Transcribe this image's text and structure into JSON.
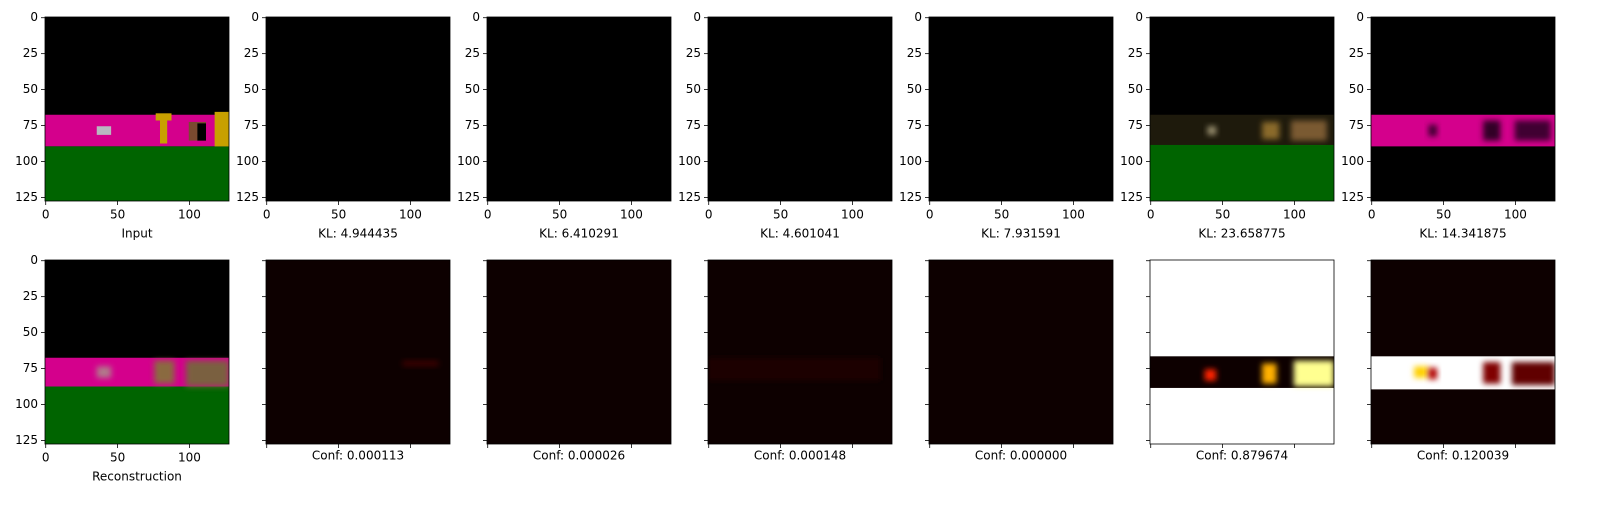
{
  "xlim": [
    -0.5,
    127.5
  ],
  "ylim": [
    -0.5,
    127.5
  ],
  "xticks": [
    0,
    50,
    100
  ],
  "yticks": [
    0,
    25,
    50,
    75,
    100,
    125
  ],
  "panels": [
    {
      "label": "Input",
      "tick_labels": true
    },
    {
      "label": "KL: 4.944435",
      "tick_labels": true
    },
    {
      "label": "KL: 6.410291",
      "tick_labels": true
    },
    {
      "label": "KL: 4.601041",
      "tick_labels": true
    },
    {
      "label": "KL: 7.931591",
      "tick_labels": true
    },
    {
      "label": "KL: 23.658775",
      "tick_labels": true
    },
    {
      "label": "KL: 14.341875",
      "tick_labels": true
    },
    {
      "label": "Reconstruction",
      "tick_labels": true
    },
    {
      "label": "Conf: 0.000113",
      "tick_labels": false
    },
    {
      "label": "Conf: 0.000026",
      "tick_labels": false
    },
    {
      "label": "Conf: 0.000148",
      "tick_labels": false
    },
    {
      "label": "Conf: 0.000000",
      "tick_labels": false
    },
    {
      "label": "Conf: 0.879674",
      "tick_labels": false
    },
    {
      "label": "Conf: 0.120039",
      "tick_labels": false
    }
  ]
}
